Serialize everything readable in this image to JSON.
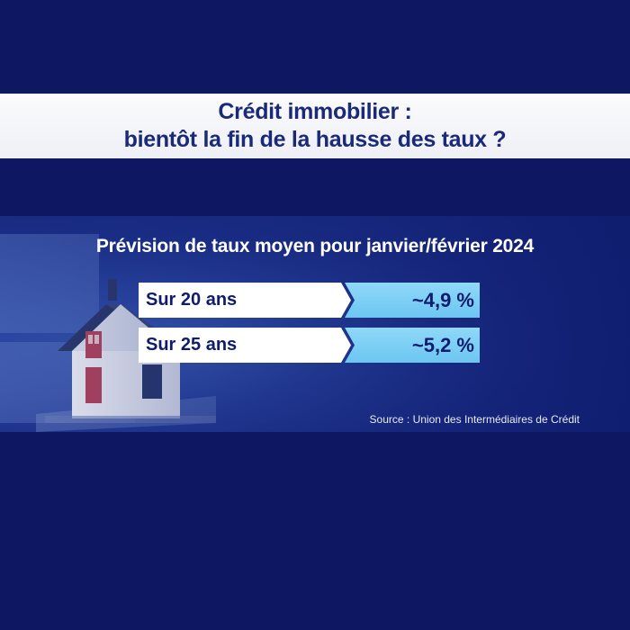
{
  "header": {
    "title_line1": "Crédit immobilier :",
    "title_line2": "bientôt la fin de la hausse des taux ?"
  },
  "panel": {
    "subtitle": "Prévision de taux moyen pour janvier/février 2024",
    "rows": [
      {
        "label": "Sur 20 ans",
        "value": "~4,9 %"
      },
      {
        "label": "Sur 25 ans",
        "value": "~5,2 %"
      }
    ],
    "source": "Source : Union des Intermédiaires de Crédit"
  },
  "colors": {
    "background": "#0d1762",
    "title_text": "#1a2a78",
    "value_box": "#7fcff5",
    "label_box": "#ffffff"
  },
  "icons": [
    "house-icon"
  ]
}
